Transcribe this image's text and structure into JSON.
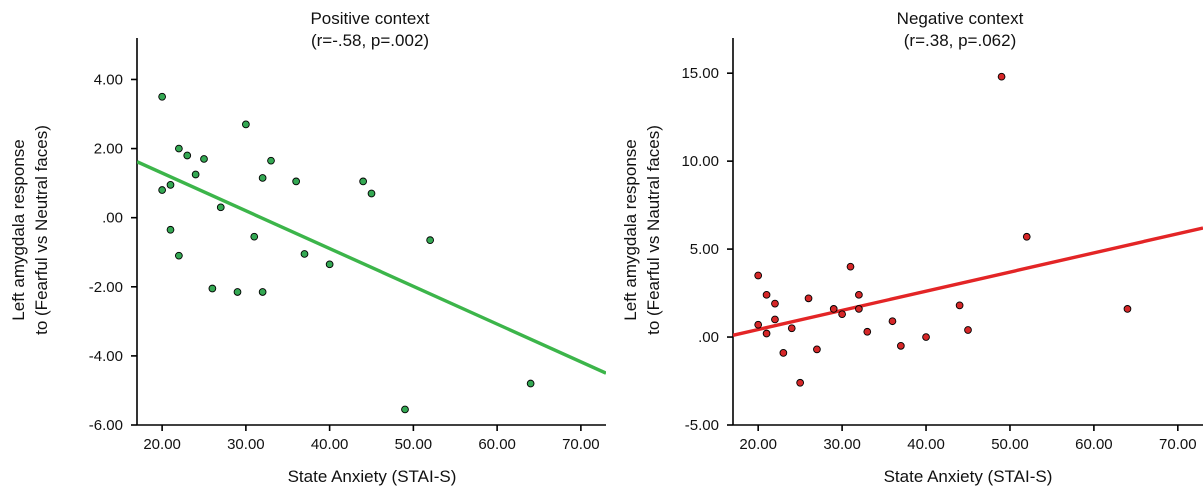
{
  "chart_data": [
    {
      "type": "scatter",
      "title": "Positive context",
      "subtitle": "(r=-.58, p=.002)",
      "xlabel": "State Anxiety (STAI-S)",
      "ylabel_line1": "Left amygdala response",
      "ylabel_line2": "to (Fearful vs Neutral faces)",
      "xlim": [
        17,
        73
      ],
      "ylim": [
        -6,
        5.2
      ],
      "x_ticks": [
        20,
        30,
        40,
        50,
        60,
        70
      ],
      "x_tick_labels": [
        "20.00",
        "30.00",
        "40.00",
        "50.00",
        "60.00",
        "70.00"
      ],
      "y_ticks": [
        4,
        2,
        0,
        -2,
        -4,
        -6
      ],
      "y_tick_labels": [
        "4.00",
        "2.00",
        ".00",
        "-2.00",
        "-4.00",
        "-6.00"
      ],
      "point_color": "#34a853",
      "line_color": "#3cb54a",
      "grid": false,
      "points": [
        {
          "x": 20,
          "y": 3.5
        },
        {
          "x": 20,
          "y": 0.8
        },
        {
          "x": 21,
          "y": 0.95
        },
        {
          "x": 21,
          "y": -0.35
        },
        {
          "x": 22,
          "y": 2.0
        },
        {
          "x": 22,
          "y": -1.1
        },
        {
          "x": 23,
          "y": 1.8
        },
        {
          "x": 24,
          "y": 1.25
        },
        {
          "x": 25,
          "y": 1.7
        },
        {
          "x": 26,
          "y": -2.05
        },
        {
          "x": 27,
          "y": 0.3
        },
        {
          "x": 29,
          "y": -2.15
        },
        {
          "x": 30,
          "y": 2.7
        },
        {
          "x": 31,
          "y": -0.55
        },
        {
          "x": 32,
          "y": 1.15
        },
        {
          "x": 32,
          "y": -2.15
        },
        {
          "x": 33,
          "y": 1.65
        },
        {
          "x": 36,
          "y": 1.05
        },
        {
          "x": 37,
          "y": -1.05
        },
        {
          "x": 40,
          "y": -1.35
        },
        {
          "x": 44,
          "y": 1.05
        },
        {
          "x": 45,
          "y": 0.7
        },
        {
          "x": 49,
          "y": -5.55
        },
        {
          "x": 52,
          "y": -0.65
        },
        {
          "x": 64,
          "y": -4.8
        }
      ],
      "fit_line": {
        "x": [
          17,
          73
        ],
        "y": [
          1.62,
          -4.5
        ]
      }
    },
    {
      "type": "scatter",
      "title": "Negative context",
      "subtitle": "(r=.38, p=.062)",
      "xlabel": "State Anxiety (STAI-S)",
      "ylabel_line1": "Left amygdala response",
      "ylabel_line2": "to (Fearful vs Nautral faces)",
      "xlim": [
        17,
        73
      ],
      "ylim": [
        -5,
        17
      ],
      "x_ticks": [
        20,
        30,
        40,
        50,
        60,
        70
      ],
      "x_tick_labels": [
        "20.00",
        "30.00",
        "40.00",
        "50.00",
        "60.00",
        "70.00"
      ],
      "y_ticks": [
        15,
        10,
        5,
        0,
        -5
      ],
      "y_tick_labels": [
        "15.00",
        "10.00",
        "5.00",
        ".00",
        "-5.00"
      ],
      "point_color": "#d62728",
      "line_color": "#e32526",
      "grid": false,
      "points": [
        {
          "x": 20,
          "y": 3.5
        },
        {
          "x": 20,
          "y": 0.7
        },
        {
          "x": 21,
          "y": 2.4
        },
        {
          "x": 21,
          "y": 0.2
        },
        {
          "x": 22,
          "y": 1.9
        },
        {
          "x": 22,
          "y": 1.0
        },
        {
          "x": 23,
          "y": -0.9
        },
        {
          "x": 24,
          "y": 0.5
        },
        {
          "x": 25,
          "y": -2.6
        },
        {
          "x": 26,
          "y": 2.2
        },
        {
          "x": 27,
          "y": -0.7
        },
        {
          "x": 29,
          "y": 1.6
        },
        {
          "x": 30,
          "y": 1.3
        },
        {
          "x": 31,
          "y": 4.0
        },
        {
          "x": 32,
          "y": 2.4
        },
        {
          "x": 32,
          "y": 1.6
        },
        {
          "x": 33,
          "y": 0.3
        },
        {
          "x": 36,
          "y": 0.9
        },
        {
          "x": 37,
          "y": -0.5
        },
        {
          "x": 40,
          "y": 0.0
        },
        {
          "x": 44,
          "y": 1.8
        },
        {
          "x": 45,
          "y": 0.4
        },
        {
          "x": 49,
          "y": 14.8
        },
        {
          "x": 52,
          "y": 5.7
        },
        {
          "x": 64,
          "y": 1.6
        }
      ],
      "fit_line": {
        "x": [
          17,
          73
        ],
        "y": [
          0.1,
          6.2
        ]
      }
    }
  ]
}
